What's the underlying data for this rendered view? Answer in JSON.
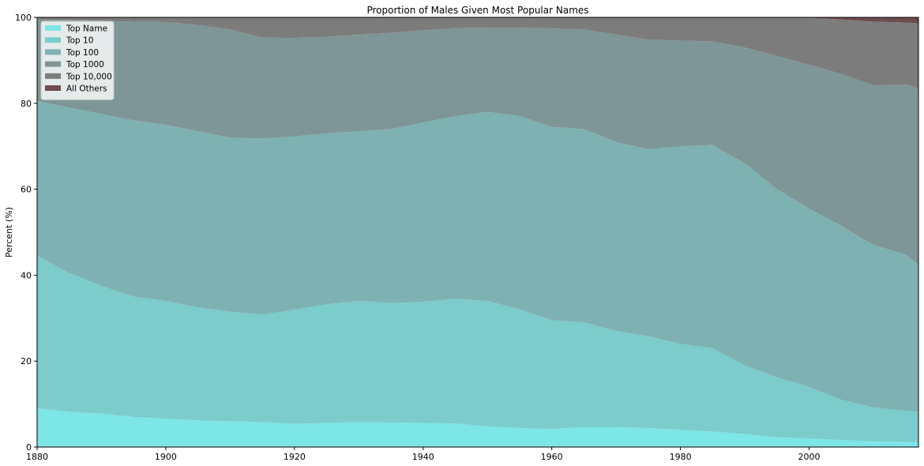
{
  "chart_data": {
    "type": "area",
    "stacked": true,
    "title": "Proportion of Males Given Most Popular Names",
    "xlabel": "",
    "ylabel": "Percent (%)",
    "xlim": [
      1880,
      2017
    ],
    "ylim": [
      0,
      100
    ],
    "xticks": [
      1880,
      1900,
      1920,
      1940,
      1960,
      1980,
      2000
    ],
    "yticks": [
      0,
      20,
      40,
      60,
      80,
      100
    ],
    "grid": false,
    "legend": "top-left",
    "x": [
      1880,
      1885,
      1890,
      1895,
      1900,
      1905,
      1910,
      1915,
      1920,
      1925,
      1930,
      1935,
      1940,
      1945,
      1950,
      1955,
      1960,
      1965,
      1970,
      1975,
      1980,
      1985,
      1990,
      1995,
      2000,
      2005,
      2010,
      2015,
      2017
    ],
    "series": [
      {
        "name": "Top Name",
        "color": "#7de6e6",
        "cumulative": [
          9,
          8.2,
          7.8,
          7,
          6.6,
          6.2,
          6,
          5.8,
          5.4,
          5.6,
          5.8,
          5.7,
          5.6,
          5.5,
          4.8,
          4.4,
          4.2,
          4.6,
          4.6,
          4.4,
          4,
          3.6,
          3,
          2.3,
          2,
          1.6,
          1.3,
          1.2,
          1.2
        ]
      },
      {
        "name": "Top 10",
        "color": "#7ccccc",
        "cumulative": [
          44.5,
          40.5,
          37.5,
          35,
          34,
          32.5,
          31.5,
          30.8,
          32,
          33.2,
          34,
          33.5,
          33.8,
          34.5,
          34,
          32,
          29.5,
          29,
          27,
          25.8,
          24,
          23,
          19,
          16.2,
          14,
          11,
          9.2,
          8.4,
          8.2
        ]
      },
      {
        "name": "Top 100",
        "color": "#7eb2b2",
        "cumulative": [
          80.5,
          79,
          77.5,
          76,
          75,
          73.5,
          72,
          71.8,
          72.3,
          73,
          73.5,
          74,
          75.5,
          77,
          78,
          77,
          74.5,
          74,
          71,
          69.3,
          70,
          70.3,
          66,
          60,
          55.5,
          51.5,
          47,
          44.8,
          42.3
        ]
      },
      {
        "name": "Top 1000",
        "color": "#7e9696",
        "cumulative": [
          99.5,
          99.4,
          99.2,
          99,
          98.9,
          98.2,
          97.2,
          95.3,
          95.2,
          95.5,
          96,
          96.4,
          97,
          97.5,
          97.6,
          97.6,
          97.4,
          97.2,
          96,
          94.8,
          94.6,
          94.4,
          93,
          91,
          89,
          86.8,
          84.2,
          84.4,
          83.5
        ]
      },
      {
        "name": "Top 10,000",
        "color": "#7c7c7c",
        "cumulative": [
          100,
          100,
          100,
          100,
          100,
          100,
          100,
          100,
          100,
          100,
          100,
          100,
          100,
          100,
          100,
          100,
          100,
          100,
          100,
          100,
          100,
          100,
          100,
          100,
          99.9,
          99.5,
          99,
          98.8,
          98.6
        ]
      },
      {
        "name": "All Others",
        "color": "#6e4e4e",
        "cumulative": [
          100,
          100,
          100,
          100,
          100,
          100,
          100,
          100,
          100,
          100,
          100,
          100,
          100,
          100,
          100,
          100,
          100,
          100,
          100,
          100,
          100,
          100,
          100,
          100,
          100,
          100,
          100,
          100,
          100
        ]
      }
    ]
  }
}
